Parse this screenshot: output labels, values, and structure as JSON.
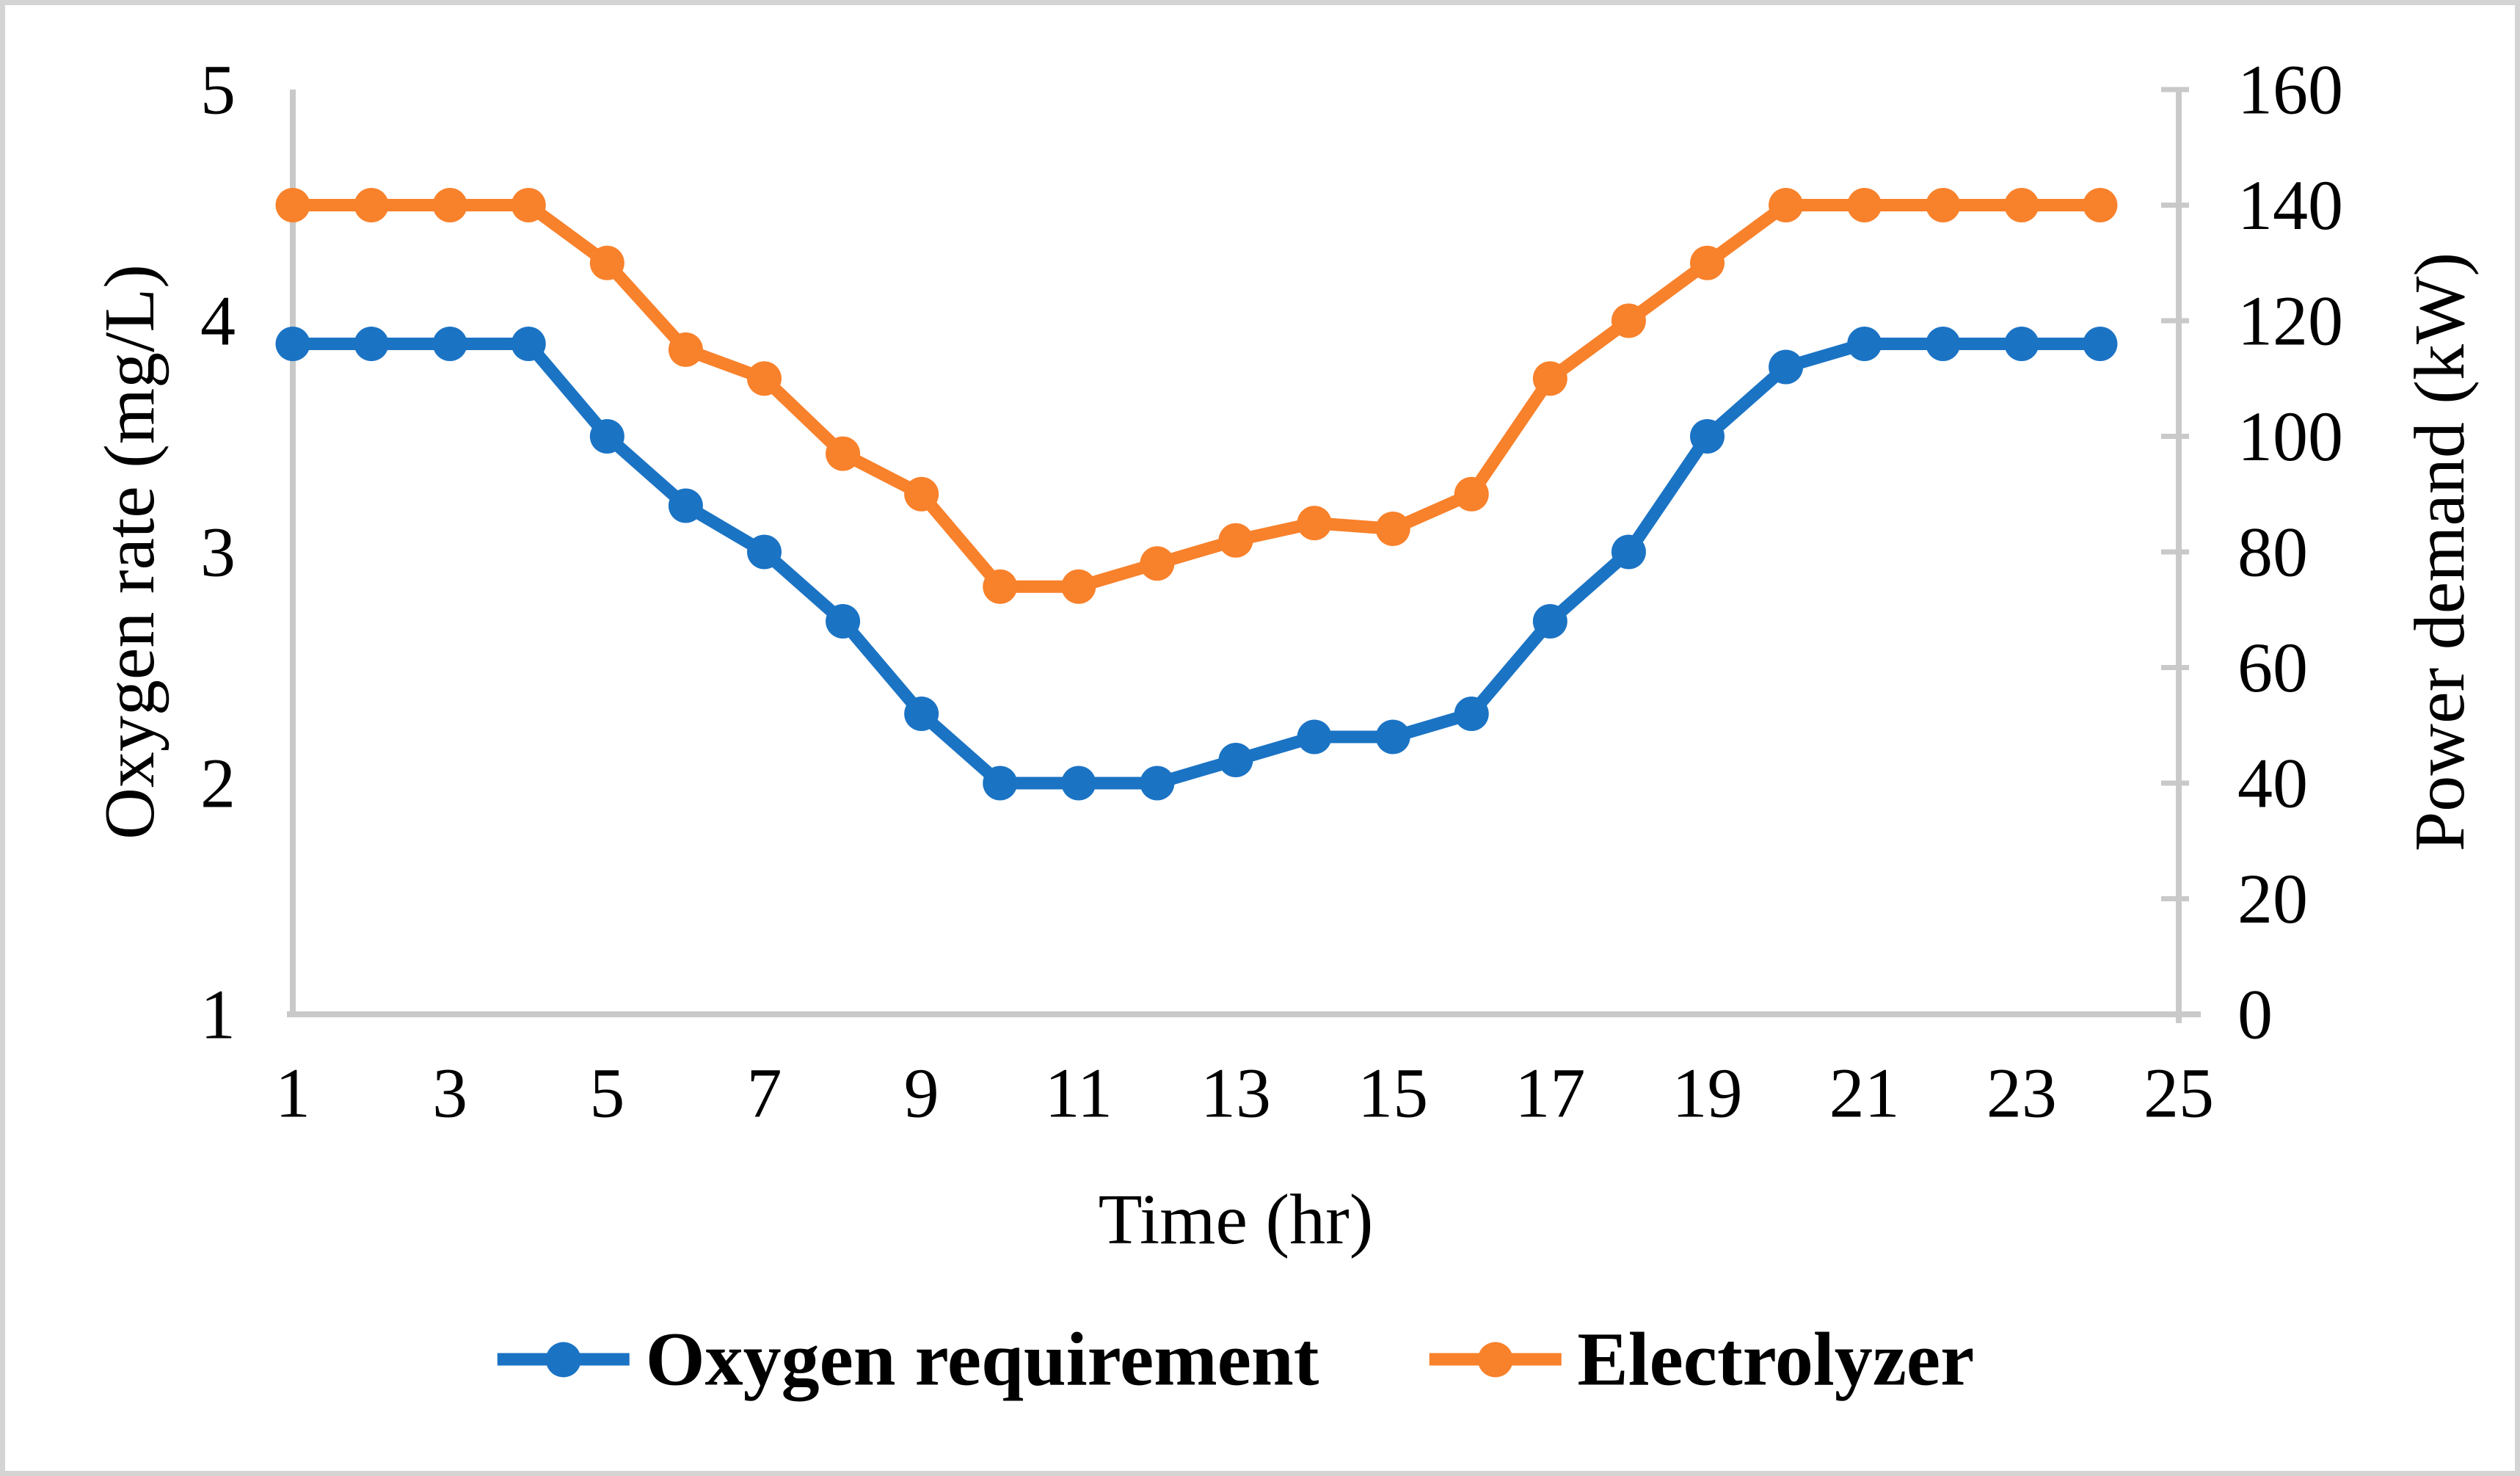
{
  "chart_data": {
    "type": "line",
    "title": "",
    "xlabel": "Time (hr)",
    "x": [
      1,
      2,
      3,
      4,
      5,
      6,
      7,
      8,
      9,
      10,
      11,
      12,
      13,
      14,
      15,
      16,
      17,
      18,
      19,
      20,
      21,
      22,
      23,
      24
    ],
    "x_ticks": [
      1,
      3,
      5,
      7,
      9,
      11,
      13,
      15,
      17,
      19,
      21,
      23,
      25
    ],
    "xlim": [
      1,
      25
    ],
    "grid": false,
    "legend_position": "bottom",
    "series": [
      {
        "name": "Oxygen requirement",
        "axis": "left",
        "color": "#1B73C4",
        "marker": "circle",
        "values": [
          3.9,
          3.9,
          3.9,
          3.9,
          3.5,
          3.2,
          3.0,
          2.7,
          2.3,
          2.0,
          2.0,
          2.0,
          2.1,
          2.2,
          2.2,
          2.3,
          2.7,
          3.0,
          3.5,
          3.8,
          3.9,
          3.9,
          3.9,
          3.9
        ]
      },
      {
        "name": "Electrolyzer",
        "axis": "right",
        "color": "#F8812B",
        "marker": "circle",
        "values": [
          140,
          140,
          140,
          140,
          130,
          115,
          110,
          97,
          90,
          74,
          74,
          78,
          82,
          85,
          84,
          90,
          110,
          120,
          130,
          140,
          140,
          140,
          140,
          140
        ]
      }
    ],
    "left_axis": {
      "label": "Oxygen rate (mg/L)",
      "ticks": [
        1,
        2,
        3,
        4,
        5
      ],
      "range": [
        1,
        5
      ]
    },
    "right_axis": {
      "label": "Power demand (kW)",
      "ticks": [
        0,
        20,
        40,
        60,
        80,
        100,
        120,
        140,
        160
      ],
      "range": [
        0,
        160
      ]
    },
    "axis_line_color": "#C9C9C9",
    "border_color": "#D4D4D4"
  }
}
